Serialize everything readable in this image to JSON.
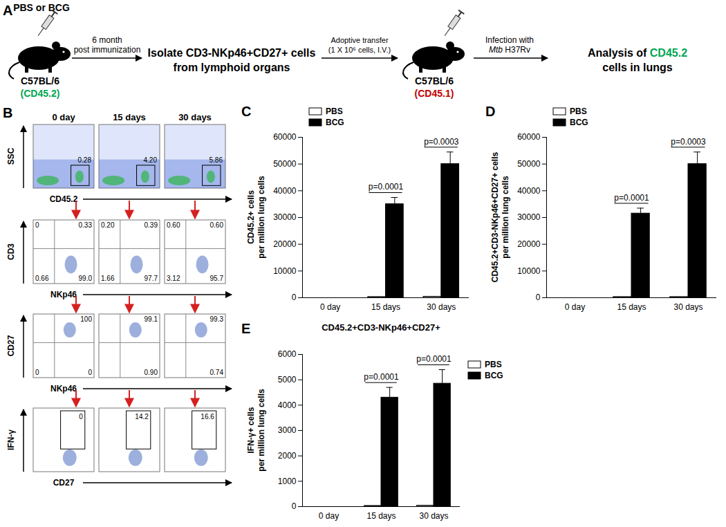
{
  "panel_a": {
    "label": "A",
    "injection": [
      [
        {
          "text": "PBS or BCG"
        }
      ]
    ],
    "donor": [
      [
        {
          "text": "C57BL/6"
        }
      ],
      [
        {
          "text": "(CD45.2)",
          "color": "#00a651"
        }
      ]
    ],
    "interval": [
      [
        {
          "text": "6 month"
        }
      ],
      [
        {
          "text": "post immunization"
        }
      ]
    ],
    "isolation": [
      [
        {
          "text": "Isolate CD3-NKp46+CD27+ cells"
        }
      ],
      [
        {
          "text": "from lymphoid organs"
        }
      ]
    ],
    "transfer": [
      [
        {
          "text": "Adoptive transfer"
        }
      ],
      [
        {
          "text": "(1 X 10⁶ cells, I.V.)"
        }
      ]
    ],
    "recipient": [
      [
        {
          "text": "C57BL/6"
        }
      ],
      [
        {
          "text": "(CD45.1)",
          "color": "#c00000"
        }
      ]
    ],
    "infection": [
      [
        {
          "text": "Infection with"
        }
      ],
      [
        {
          "text": "Mtb",
          "italic": true
        },
        {
          "text": " H37Rv"
        }
      ]
    ],
    "analysis": [
      [
        {
          "text": "Analysis of "
        },
        {
          "text": "CD45.2",
          "color": "#00a651"
        }
      ],
      [
        {
          "text": "cells in lungs"
        }
      ]
    ]
  },
  "panel_b": {
    "label": "B",
    "columns": [
      "0 day",
      "15 days",
      "30 days"
    ],
    "rows": [
      {
        "y_label": "SSC",
        "x_label": "CD45.2",
        "values": [
          0.28,
          {
            "value": 4.2,
            "label": "4.20"
          },
          5.86
        ]
      },
      {
        "y_label": "CD3",
        "x_label": "NKp46",
        "values": [
          {
            "upper_left": 0,
            "upper_right": 0.33,
            "lower_left": 0.66,
            "lower_right": {
              "value": 99,
              "label": "99.0"
            }
          },
          {
            "upper_left": {
              "value": 0.2,
              "label": "0.20"
            },
            "upper_right": 0.39,
            "lower_left": 1.66,
            "lower_right": 97.7
          },
          {
            "upper_left": {
              "value": 0.6,
              "label": "0.60"
            },
            "upper_right": {
              "value": 0.6,
              "label": "0.60"
            },
            "lower_left": 3.12,
            "lower_right": 95.7
          }
        ]
      },
      {
        "y_label": "CD27",
        "x_label": "NKp46",
        "values": [
          {
            "upper_right": 100,
            "lower_left": 0,
            "lower_right": 0
          },
          {
            "upper_right": 99.1,
            "lower_right": {
              "value": 0.9,
              "label": "0.90"
            }
          },
          {
            "upper_right": 99.3,
            "lower_right": 0.74
          }
        ]
      },
      {
        "y_label": "IFN-γ",
        "x_label": "CD27",
        "values": [
          0,
          14.2,
          16.6
        ]
      }
    ]
  },
  "chart_data": [
    {
      "type": "bar",
      "panel_label": "C",
      "categories": [
        "0 day",
        "15 days",
        "30 days"
      ],
      "series": [
        {
          "name": "PBS",
          "color": "#ffffff",
          "values": [
            0,
            300,
            400
          ],
          "errors": [
            0,
            0,
            0
          ]
        },
        {
          "name": "BCG",
          "color": "#000000",
          "values": [
            0,
            35000,
            50000
          ],
          "errors": [
            0,
            2500,
            4500
          ]
        }
      ],
      "ylabel": [
        "CD45.2+ cells",
        "per million lung cells"
      ],
      "ylim": [
        0,
        60000
      ],
      "yticks": [
        0,
        10000,
        20000,
        30000,
        40000,
        50000,
        60000
      ],
      "p_values": [
        null,
        "p=0.0001",
        "p=0.0003"
      ],
      "legend": "top-left"
    },
    {
      "type": "bar",
      "panel_label": "D",
      "categories": [
        "0 day",
        "15 days",
        "30 days"
      ],
      "series": [
        {
          "name": "PBS",
          "color": "#ffffff",
          "values": [
            0,
            300,
            300
          ],
          "errors": [
            0,
            0,
            0
          ]
        },
        {
          "name": "BCG",
          "color": "#000000",
          "values": [
            0,
            31500,
            50000
          ],
          "errors": [
            0,
            2000,
            4500
          ]
        }
      ],
      "ylabel": [
        "CD45.2+CD3-NKp46+CD27+ cells",
        "per million lung cells"
      ],
      "ylim": [
        0,
        60000
      ],
      "yticks": [
        0,
        10000,
        20000,
        30000,
        40000,
        50000,
        60000
      ],
      "p_values": [
        null,
        "p=0.0001",
        "p=0.0003"
      ],
      "legend": "top-left"
    },
    {
      "type": "bar",
      "panel_label": "E",
      "title": "CD45.2+CD3-NKp46+CD27+",
      "categories": [
        "0 day",
        "15 days",
        "30 days"
      ],
      "series": [
        {
          "name": "PBS",
          "color": "#ffffff",
          "values": [
            0,
            30,
            40
          ],
          "errors": [
            0,
            0,
            0
          ]
        },
        {
          "name": "BCG",
          "color": "#000000",
          "values": [
            0,
            4300,
            4850
          ],
          "errors": [
            0,
            400,
            550
          ]
        }
      ],
      "ylabel": [
        "IFN-γ+ cells",
        "per million lung cells"
      ],
      "ylim": [
        0,
        6000
      ],
      "yticks": [
        0,
        1000,
        2000,
        3000,
        4000,
        5000,
        6000
      ],
      "p_values": [
        null,
        "p=0.0001",
        "p=0.0001"
      ],
      "legend": "right"
    }
  ]
}
